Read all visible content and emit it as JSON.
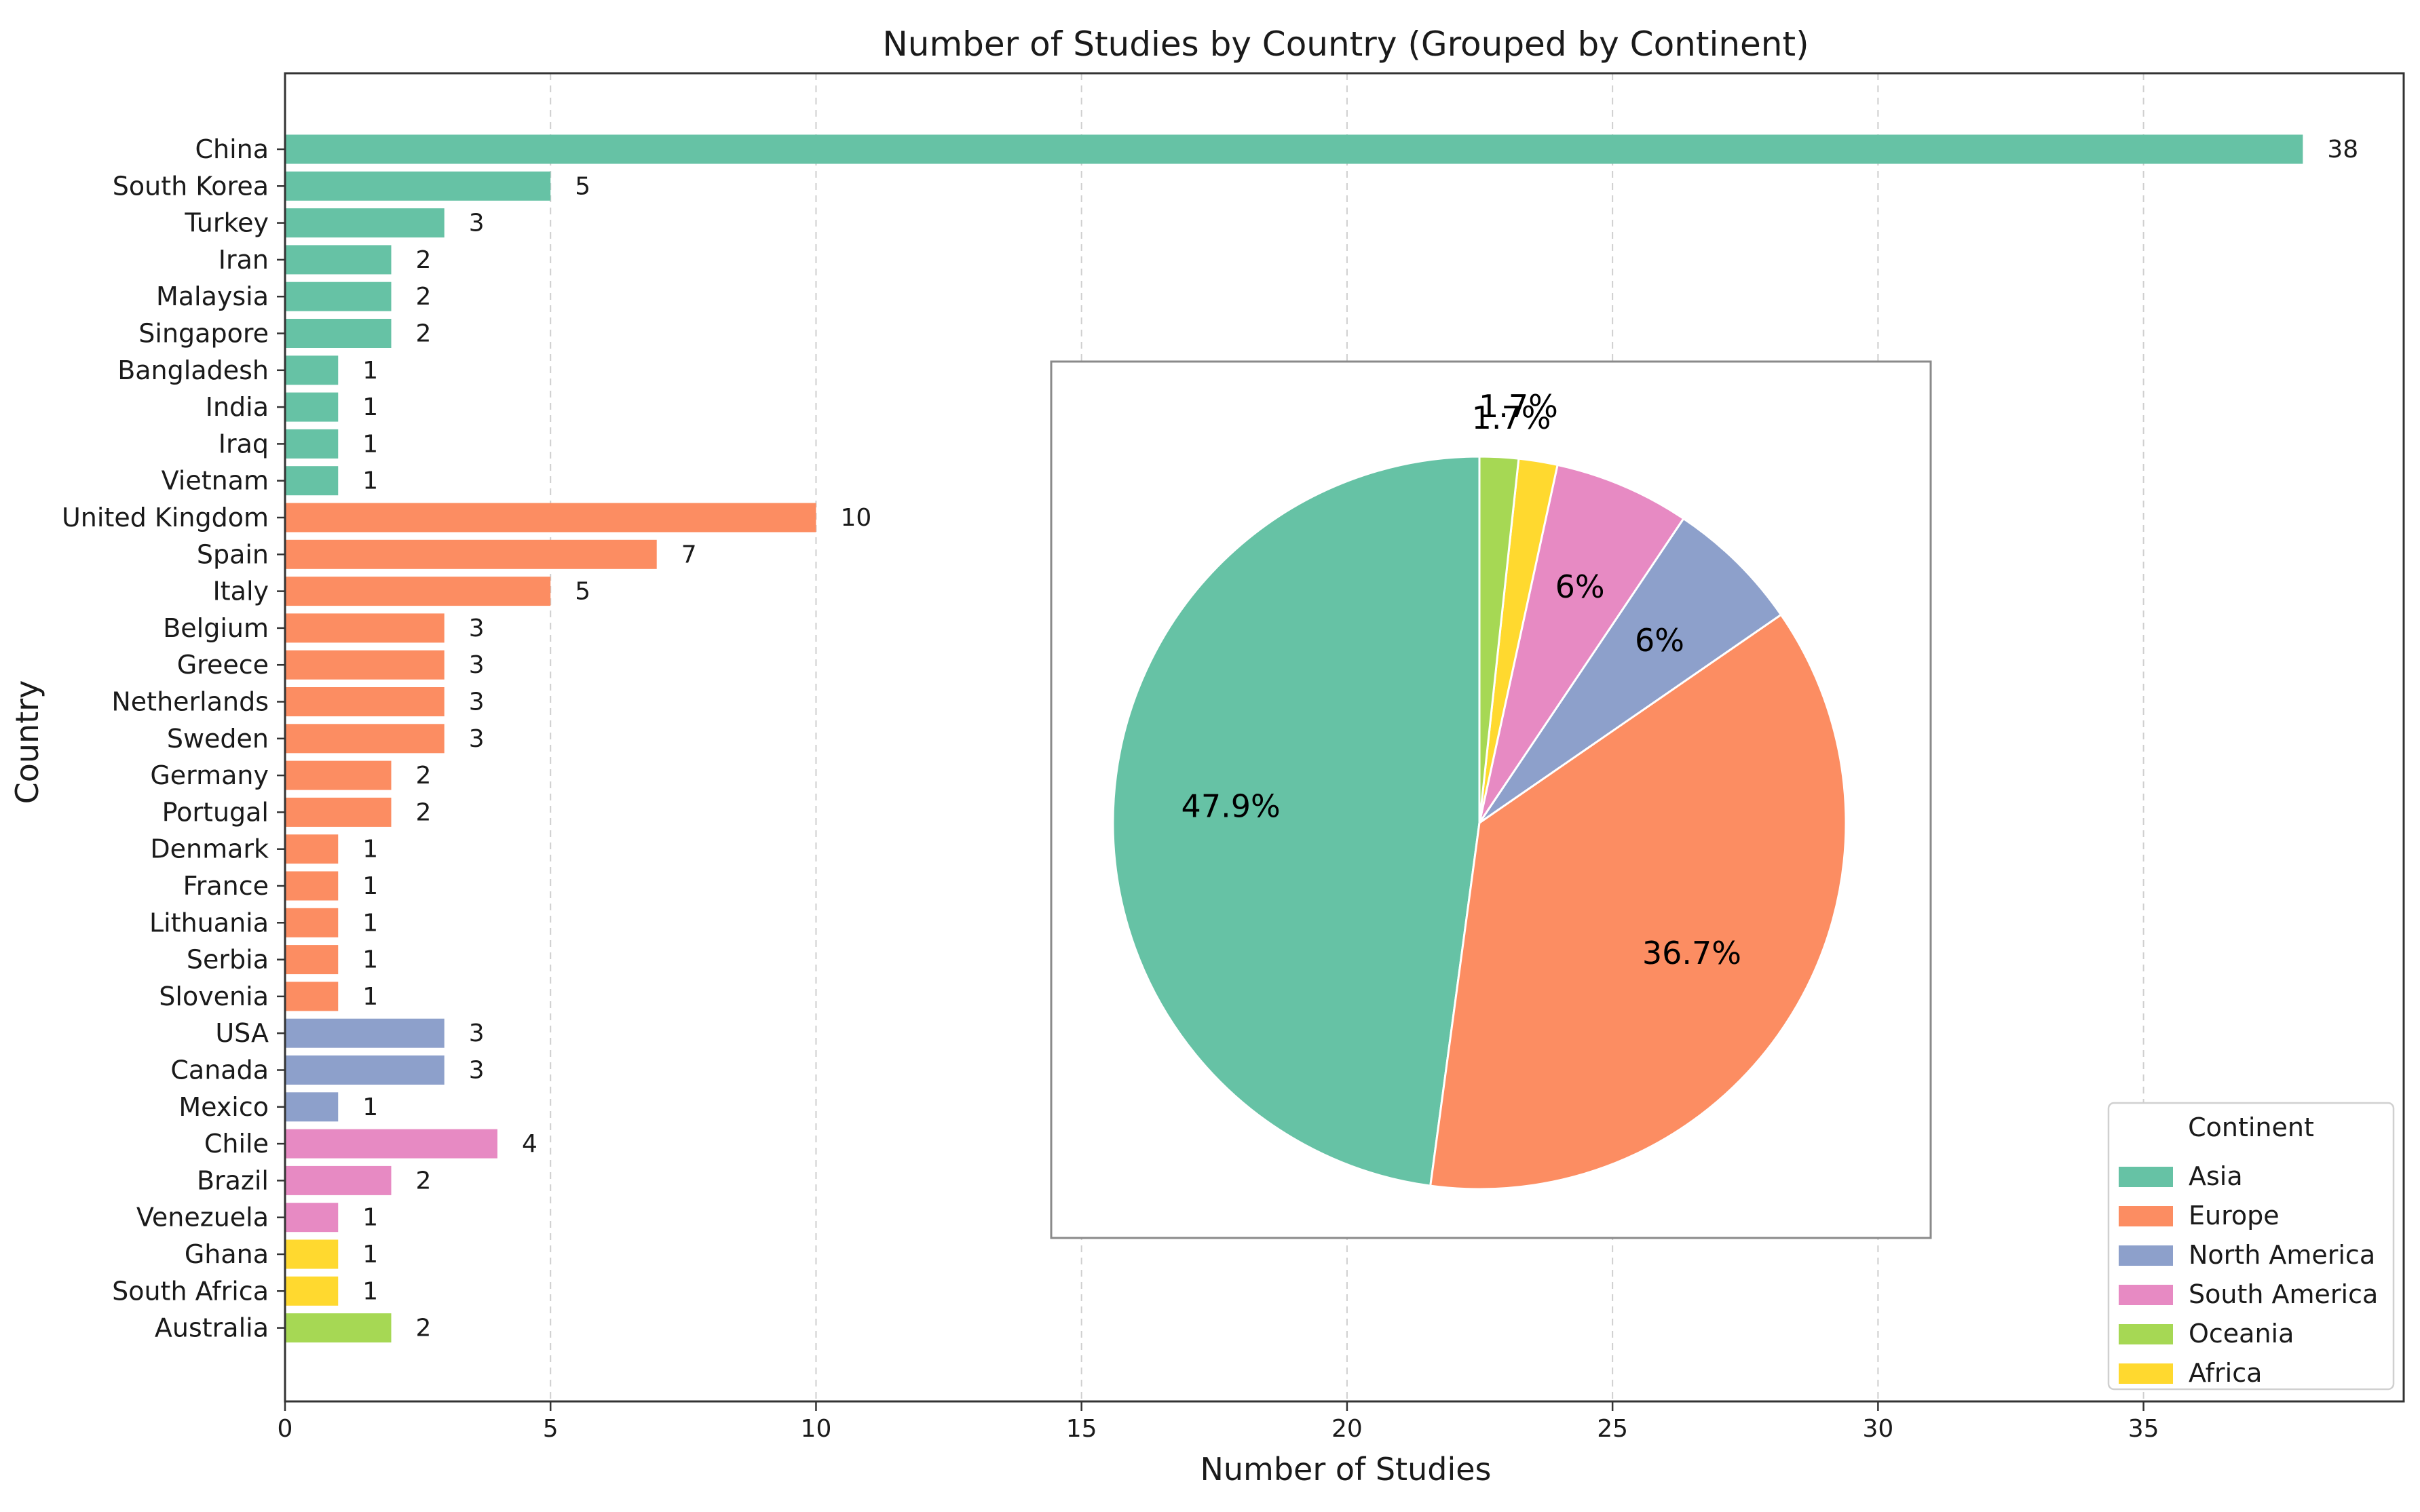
{
  "chart_data": [
    {
      "type": "bar",
      "orientation": "horizontal",
      "title": "Number of Studies by Country (Grouped by Continent)",
      "xlabel": "Number of Studies",
      "ylabel": "Country",
      "xlim": [
        0,
        39.9
      ],
      "xticks": [
        0,
        5,
        10,
        15,
        20,
        25,
        30,
        35
      ],
      "grid": "x-dashed",
      "categories": [
        "China",
        "South Korea",
        "Turkey",
        "Iran",
        "Malaysia",
        "Singapore",
        "Bangladesh",
        "India",
        "Iraq",
        "Vietnam",
        "United Kingdom",
        "Spain",
        "Italy",
        "Belgium",
        "Greece",
        "Netherlands",
        "Sweden",
        "Germany",
        "Portugal",
        "Denmark",
        "France",
        "Lithuania",
        "Serbia",
        "Slovenia",
        "USA",
        "Canada",
        "Mexico",
        "Chile",
        "Brazil",
        "Venezuela",
        "Ghana",
        "South Africa",
        "Australia"
      ],
      "values": [
        38,
        5,
        3,
        2,
        2,
        2,
        1,
        1,
        1,
        1,
        10,
        7,
        5,
        3,
        3,
        3,
        3,
        2,
        2,
        1,
        1,
        1,
        1,
        1,
        3,
        3,
        1,
        4,
        2,
        1,
        1,
        1,
        2
      ],
      "continent": [
        "Asia",
        "Asia",
        "Asia",
        "Asia",
        "Asia",
        "Asia",
        "Asia",
        "Asia",
        "Asia",
        "Asia",
        "Europe",
        "Europe",
        "Europe",
        "Europe",
        "Europe",
        "Europe",
        "Europe",
        "Europe",
        "Europe",
        "Europe",
        "Europe",
        "Europe",
        "Europe",
        "Europe",
        "North America",
        "North America",
        "North America",
        "South America",
        "South America",
        "South America",
        "Africa",
        "Africa",
        "Oceania"
      ]
    },
    {
      "type": "pie",
      "labels": [
        "Asia",
        "Europe",
        "North America",
        "South America",
        "Africa",
        "Oceania"
      ],
      "values": [
        56,
        43,
        7,
        7,
        2,
        2
      ],
      "pct_labels": [
        "47.9%",
        "36.7%",
        "6%",
        "6%",
        "1.7%",
        "1.7%"
      ],
      "start_angle_deg": 90,
      "direction": "counterclockwise"
    }
  ],
  "legend": {
    "title": "Continent",
    "placement": "lower-right",
    "entries": [
      {
        "label": "Asia",
        "color": "#66c2a5"
      },
      {
        "label": "Europe",
        "color": "#fc8d62"
      },
      {
        "label": "North America",
        "color": "#8da0cb"
      },
      {
        "label": "South America",
        "color": "#e78ac3"
      },
      {
        "label": "Oceania",
        "color": "#a6d854"
      },
      {
        "label": "Africa",
        "color": "#ffd92f"
      }
    ]
  },
  "colors": {
    "Asia": "#66c2a5",
    "Europe": "#fc8d62",
    "North America": "#8da0cb",
    "South America": "#e78ac3",
    "Oceania": "#a6d854",
    "Africa": "#ffd92f"
  }
}
